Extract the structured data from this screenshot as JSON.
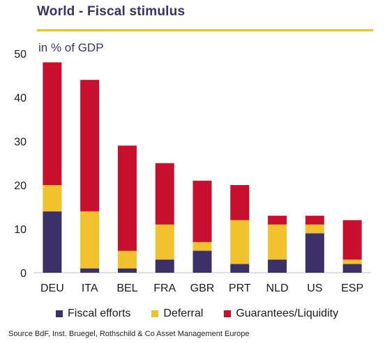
{
  "header": {
    "title": "World - Fiscal stimulus",
    "subtitle": "in % of GDP"
  },
  "footer": {
    "source": "Source BdF, Inst. Bruegel, Rothschild & Co Asset Management Europe"
  },
  "colors": {
    "title": "#3b3167",
    "rule": "#f1c40f",
    "fiscal": "#3b3167",
    "deferral": "#f2c12e",
    "guarantees": "#c8102e"
  },
  "chart_data": {
    "type": "bar",
    "stacked": true,
    "categories": [
      "DEU",
      "ITA",
      "BEL",
      "FRA",
      "GBR",
      "PRT",
      "NLD",
      "US",
      "ESP"
    ],
    "series": [
      {
        "name": "Fiscal efforts",
        "values": [
          14,
          1,
          1,
          3,
          5,
          2,
          3,
          9,
          2
        ]
      },
      {
        "name": "Deferral",
        "values": [
          6,
          13,
          4,
          8,
          2,
          10,
          8,
          2,
          1
        ]
      },
      {
        "name": "Guarantees/Liquidity",
        "values": [
          28,
          30,
          24,
          14,
          14,
          8,
          2,
          2,
          9
        ]
      }
    ],
    "ylim": [
      0,
      50
    ],
    "yticks": [
      0,
      10,
      20,
      30,
      40,
      50
    ],
    "grid": false,
    "legend_position": "bottom"
  }
}
